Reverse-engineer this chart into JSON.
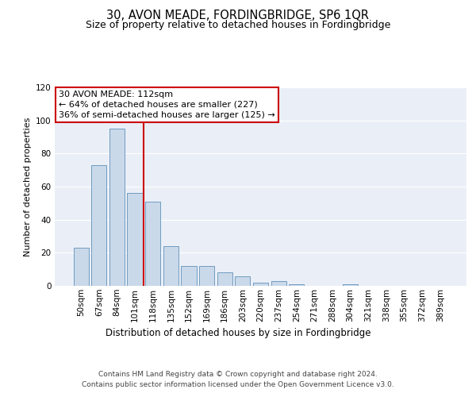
{
  "title": "30, AVON MEADE, FORDINGBRIDGE, SP6 1QR",
  "subtitle": "Size of property relative to detached houses in Fordingbridge",
  "xlabel": "Distribution of detached houses by size in Fordingbridge",
  "ylabel": "Number of detached properties",
  "categories": [
    "50sqm",
    "67sqm",
    "84sqm",
    "101sqm",
    "118sqm",
    "135sqm",
    "152sqm",
    "169sqm",
    "186sqm",
    "203sqm",
    "220sqm",
    "237sqm",
    "254sqm",
    "271sqm",
    "288sqm",
    "304sqm",
    "321sqm",
    "338sqm",
    "355sqm",
    "372sqm",
    "389sqm"
  ],
  "values": [
    23,
    73,
    95,
    56,
    51,
    24,
    12,
    12,
    8,
    6,
    2,
    3,
    1,
    0,
    0,
    1,
    0,
    0,
    0,
    0,
    0
  ],
  "bar_color": "#c9d9ea",
  "bar_edge_color": "#6090b8",
  "background_color": "#eaeff7",
  "grid_color": "#ffffff",
  "annotation_text_line1": "30 AVON MEADE: 112sqm",
  "annotation_text_line2": "← 64% of detached houses are smaller (227)",
  "annotation_text_line3": "36% of semi-detached houses are larger (125) →",
  "annotation_box_facecolor": "#ffffff",
  "annotation_box_edgecolor": "#cc0000",
  "vline_color": "#cc0000",
  "ylim": [
    0,
    120
  ],
  "yticks": [
    0,
    20,
    40,
    60,
    80,
    100,
    120
  ],
  "footer_line1": "Contains HM Land Registry data © Crown copyright and database right 2024.",
  "footer_line2": "Contains public sector information licensed under the Open Government Licence v3.0.",
  "title_fontsize": 10.5,
  "subtitle_fontsize": 9,
  "xlabel_fontsize": 8.5,
  "ylabel_fontsize": 8,
  "tick_fontsize": 7.5,
  "annotation_fontsize": 8,
  "footer_fontsize": 6.5
}
